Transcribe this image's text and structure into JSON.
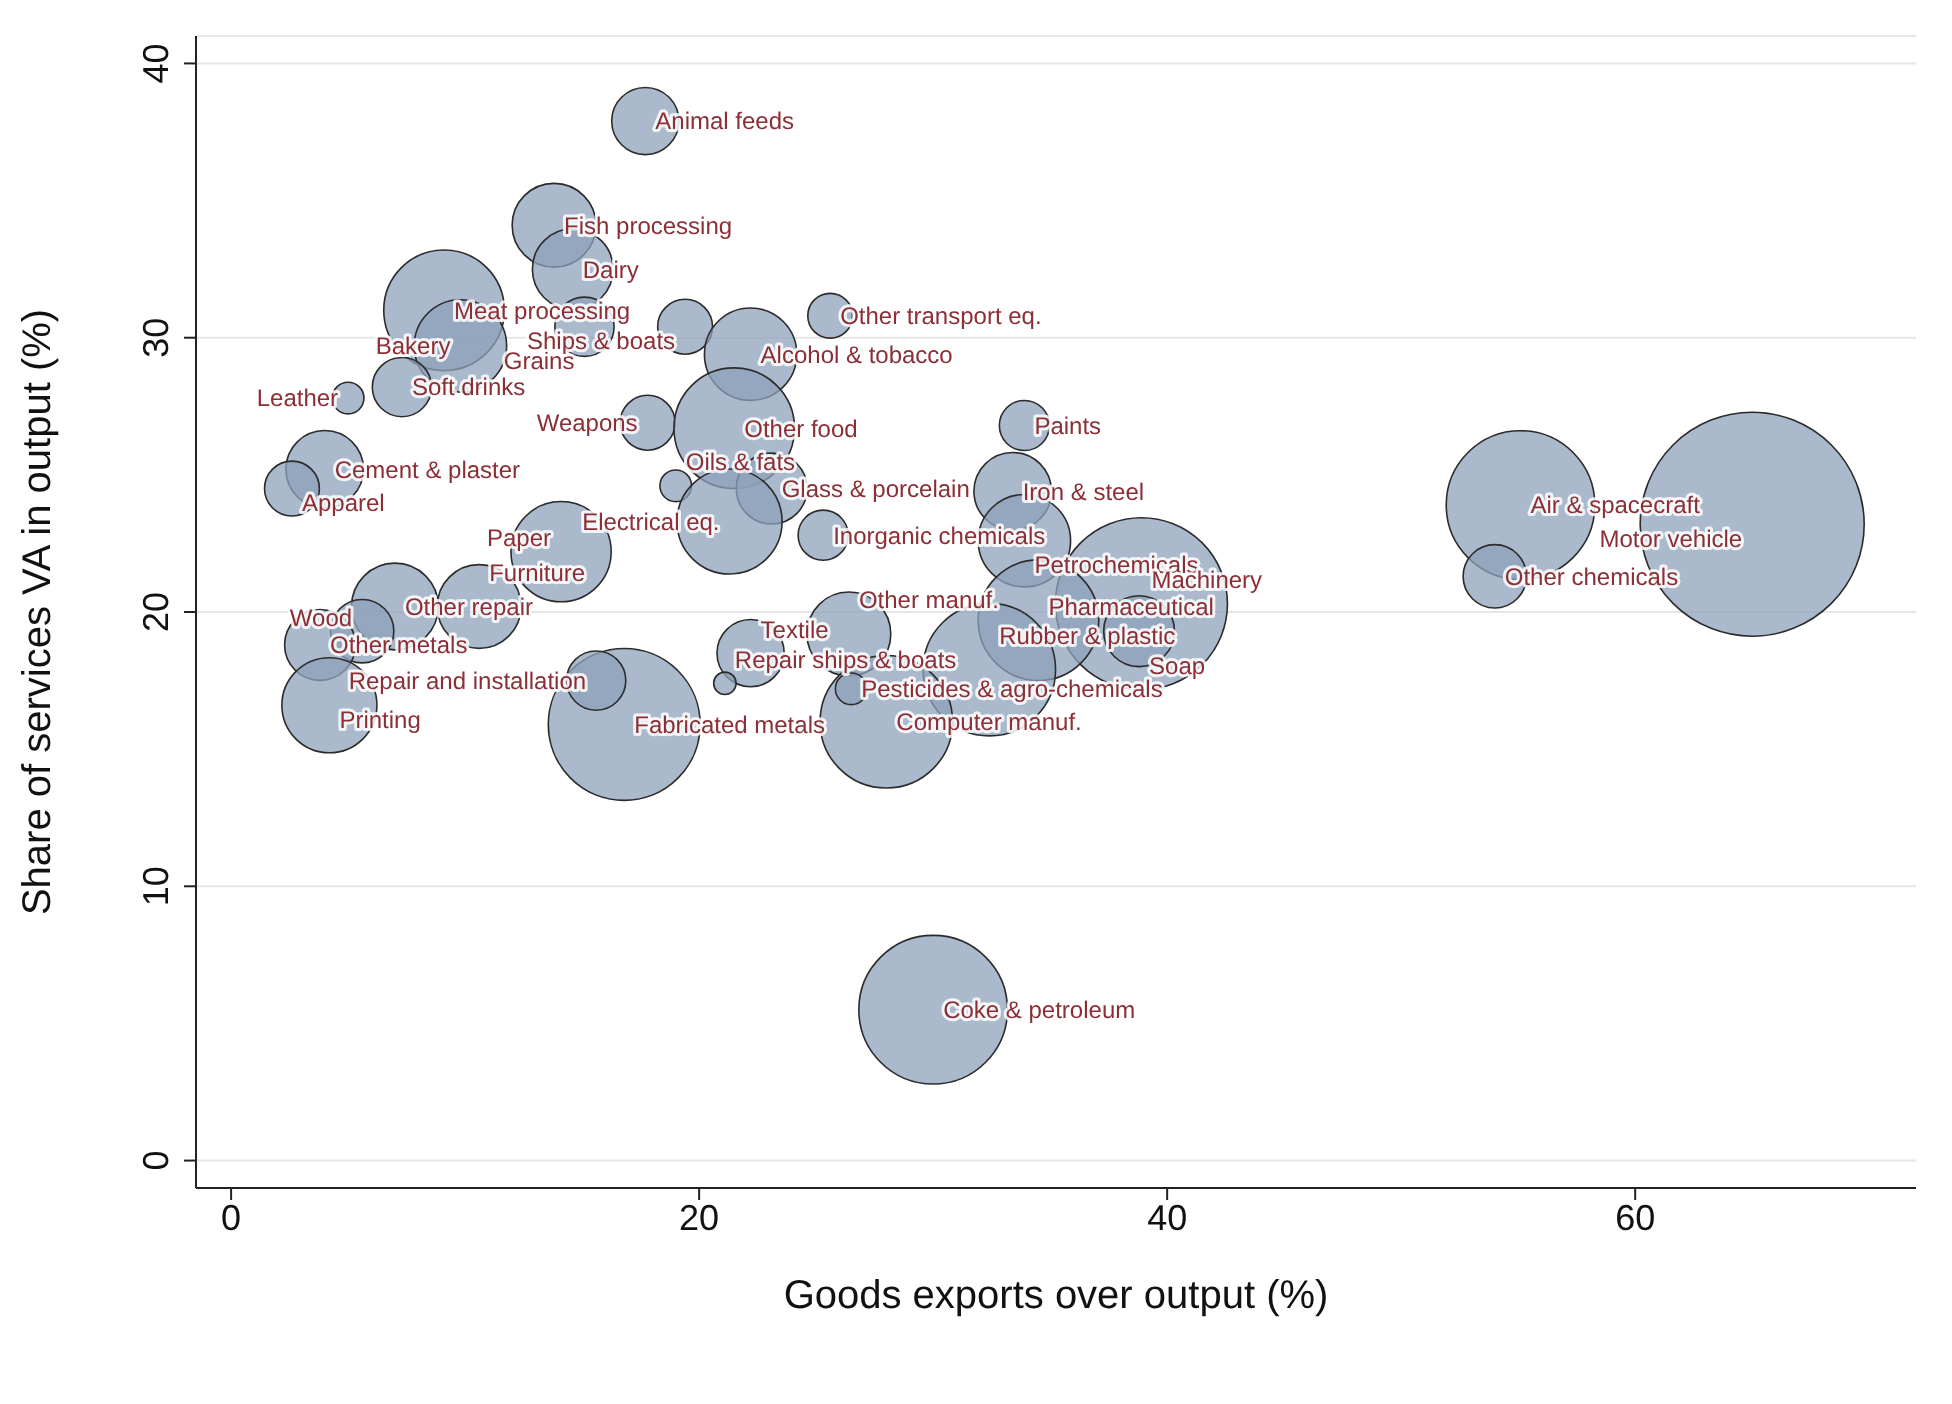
{
  "chart_data": {
    "type": "bubble",
    "xlabel": "Goods exports over output (%)",
    "ylabel": "Share of services VA in output (%)",
    "xlim": [
      -1.5,
      72
    ],
    "ylim": [
      -1,
      41
    ],
    "xticks": [
      0,
      20,
      40,
      60
    ],
    "yticks": [
      0,
      10,
      20,
      30,
      40
    ],
    "grid": "y",
    "series": [
      {
        "color": "#8ea2ba",
        "x": [
          17.7,
          13.8,
          14.6,
          9.1,
          9.8,
          15.1,
          19.4,
          25.6,
          22.2,
          7.3,
          5.0,
          17.8,
          21.5,
          33.9,
          4.0,
          2.6,
          19.0,
          23.1,
          21.3,
          25.3,
          33.4,
          33.9,
          14.1,
          38.9,
          38.8,
          34.5,
          26.4,
          32.4,
          28.0,
          22.2,
          16.8,
          15.6,
          21.1,
          26.5,
          10.6,
          7.0,
          5.6,
          3.8,
          4.2,
          30.0,
          55.1,
          54.0,
          65.0
        ],
        "values": [
          37.9,
          34.1,
          32.5,
          31.0,
          29.7,
          30.4,
          30.4,
          30.8,
          29.4,
          28.2,
          27.8,
          26.9,
          26.7,
          26.8,
          25.2,
          24.5,
          24.6,
          24.5,
          23.3,
          22.8,
          24.4,
          22.6,
          22.2,
          20.3,
          19.3,
          19.7,
          19.2,
          17.9,
          16.0,
          18.5,
          15.9,
          17.5,
          17.4,
          17.2,
          20.2,
          20.2,
          19.3,
          18.8,
          16.6,
          5.5,
          23.9,
          21.3,
          23.2
        ],
        "sizes": [
          0.09,
          0.14,
          0.13,
          0.29,
          0.17,
          0.07,
          0.06,
          0.04,
          0.17,
          0.07,
          0.02,
          0.06,
          0.29,
          0.05,
          0.12,
          0.06,
          0.02,
          0.1,
          0.22,
          0.05,
          0.12,
          0.17,
          0.2,
          0.59,
          0.1,
          0.29,
          0.14,
          0.35,
          0.35,
          0.09,
          0.46,
          0.07,
          0.01,
          0.02,
          0.14,
          0.15,
          0.08,
          0.1,
          0.18,
          0.44,
          0.44,
          0.08,
          1
        ]
      }
    ],
    "annotations": [
      {
        "text": "Animal feeds",
        "x": 17.7,
        "y": 37.9
      },
      {
        "text": "Fish processing",
        "x": 13.8,
        "y": 34.1
      },
      {
        "text": "Dairy",
        "x": 14.6,
        "y": 32.5
      },
      {
        "text": "Meat processing",
        "x": 9.1,
        "y": 31.0
      },
      {
        "text": "Bakery",
        "x": 9.8,
        "y": 29.7
      },
      {
        "text": "Grains",
        "x": 15.1,
        "y": 30.4
      },
      {
        "text": "Ships & boats",
        "x": 19.4,
        "y": 30.4
      },
      {
        "text": "Other transport eq.",
        "x": 25.6,
        "y": 30.8
      },
      {
        "text": "Alcohol & tobacco",
        "x": 22.2,
        "y": 29.4
      },
      {
        "text": "Soft drinks",
        "x": 7.3,
        "y": 28.2
      },
      {
        "text": "Leather",
        "x": 5.0,
        "y": 27.8
      },
      {
        "text": "Weapons",
        "x": 17.8,
        "y": 26.9
      },
      {
        "text": "Other food",
        "x": 21.5,
        "y": 26.7
      },
      {
        "text": "Paints",
        "x": 33.9,
        "y": 26.8
      },
      {
        "text": "Cement & plaster",
        "x": 4.0,
        "y": 25.2
      },
      {
        "text": "Apparel",
        "x": 2.6,
        "y": 24.5
      },
      {
        "text": "Oils & fats",
        "x": 19.0,
        "y": 24.6
      },
      {
        "text": "Glass & porcelain",
        "x": 23.1,
        "y": 24.5
      },
      {
        "text": "Electrical eq.",
        "x": 21.3,
        "y": 23.3
      },
      {
        "text": "Inorganic chemicals",
        "x": 25.3,
        "y": 22.8
      },
      {
        "text": "Iron & steel",
        "x": 33.4,
        "y": 24.4
      },
      {
        "text": "Petrochemicals",
        "x": 33.9,
        "y": 22.6
      },
      {
        "text": "Paper",
        "x": 14.1,
        "y": 22.2
      },
      {
        "text": "Machinery",
        "x": 38.9,
        "y": 20.3
      },
      {
        "text": "Soap",
        "x": 38.8,
        "y": 19.3
      },
      {
        "text": "Pharmaceutical",
        "x": 34.5,
        "y": 19.7
      },
      {
        "text": "Other manuf.",
        "x": 26.4,
        "y": 19.2
      },
      {
        "text": "Rubber & plastic",
        "x": 32.4,
        "y": 17.9
      },
      {
        "text": "Computer manuf.",
        "x": 28.0,
        "y": 16.0
      },
      {
        "text": "Textile",
        "x": 22.2,
        "y": 18.5
      },
      {
        "text": "Fabricated metals",
        "x": 16.8,
        "y": 15.9
      },
      {
        "text": "Repair and installation",
        "x": 15.6,
        "y": 17.5
      },
      {
        "text": "Repair ships & boats",
        "x": 21.1,
        "y": 17.4
      },
      {
        "text": "Pesticides & agro-chemicals",
        "x": 26.5,
        "y": 17.2
      },
      {
        "text": "Furniture",
        "x": 10.6,
        "y": 20.2
      },
      {
        "text": "Other repair",
        "x": 7.0,
        "y": 20.2
      },
      {
        "text": "Wood",
        "x": 5.6,
        "y": 19.3
      },
      {
        "text": "Other metals",
        "x": 3.8,
        "y": 18.8
      },
      {
        "text": "Printing",
        "x": 4.2,
        "y": 16.6
      },
      {
        "text": "Coke & petroleum",
        "x": 30.0,
        "y": 5.5
      },
      {
        "text": "Air & spacecraft",
        "x": 55.1,
        "y": 23.9
      },
      {
        "text": "Other chemicals",
        "x": 54.0,
        "y": 21.3
      },
      {
        "text": "Motor vehicle",
        "x": 65.0,
        "y": 23.2
      }
    ]
  }
}
